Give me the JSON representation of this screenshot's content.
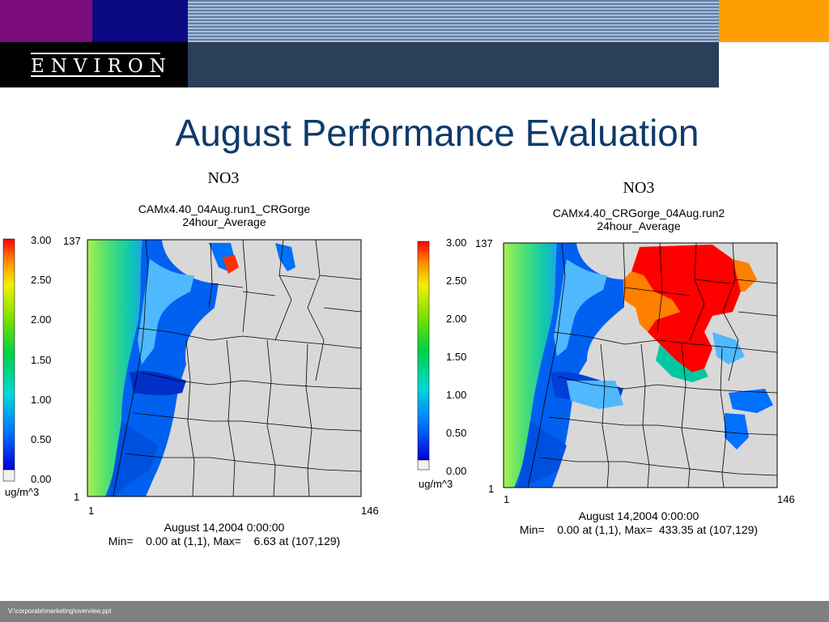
{
  "logo": "ENVIRON",
  "title": "August Performance Evaluation",
  "footer": "V:\\corporate\\marketing\\overview.ppt",
  "colors": {
    "accent_purple": "#7a0c7e",
    "accent_navy": "#0a0a84",
    "accent_orange": "#ff9e00",
    "title": "#0f3a6b"
  },
  "panels": [
    {
      "species": "NO3",
      "run": "CAMx4.40_04Aug.run1_CRGorge",
      "average": "24hour_Average",
      "scale_labels": [
        "3.00",
        "2.50",
        "2.00",
        "1.50",
        "1.00",
        "0.50",
        "0.00"
      ],
      "unit": "ug/m^3",
      "y_top": "137",
      "y_bottom": "1",
      "x_left": "1",
      "x_right": "146",
      "date": "August 14,2004 0:00:00",
      "stats": "Min=    0.00 at (1,1), Max=    6.63 at (107,129)"
    },
    {
      "species": "NO3",
      "run": "CAMx4.40_CRGorge_04Aug.run2",
      "average": "24hour_Average",
      "scale_labels": [
        "3.00",
        "2.50",
        "2.00",
        "1.50",
        "1.00",
        "0.50",
        "0.00"
      ],
      "unit": "ug/m^3",
      "y_top": "137",
      "y_bottom": "1",
      "x_left": "1",
      "x_right": "146",
      "date": "August 14,2004 0:00:00",
      "stats": "Min=    0.00 at (1,1), Max=  433.35 at (107,129)"
    }
  ]
}
